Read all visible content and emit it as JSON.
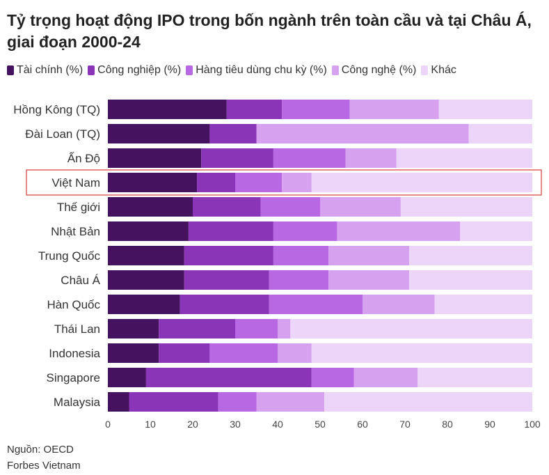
{
  "title": "Tỷ trọng hoạt động IPO trong bốn ngành trên toàn cầu và tại Châu Á, giai đoạn 2000-24",
  "source": "Nguồn: OECD",
  "publisher": "Forbes Vietnam",
  "colors": {
    "series": [
      "#44125e",
      "#8a35b8",
      "#b968e3",
      "#d6a2f0",
      "#ecd5f8"
    ],
    "highlight_border": "#d83a3a",
    "axis_text": "#444444"
  },
  "chart_data": {
    "type": "bar",
    "orientation": "horizontal",
    "stacked": true,
    "title": "Tỷ trọng hoạt động IPO trong bốn ngành trên toàn cầu và tại Châu Á, giai đoạn 2000-24",
    "categories": [
      "Hồng Kông (TQ)",
      "Đài Loan (TQ)",
      "Ấn Độ",
      "Việt Nam",
      "Thế giới",
      "Nhật Bản",
      "Trung Quốc",
      "Châu Á",
      "Hàn Quốc",
      "Thái Lan",
      "Indonesia",
      "Singapore",
      "Malaysia"
    ],
    "series": [
      {
        "name": "Tài chính (%)",
        "values": [
          28,
          24,
          22,
          21,
          20,
          19,
          18,
          18,
          17,
          12,
          12,
          9,
          5
        ]
      },
      {
        "name": "Công nghiệp (%)",
        "values": [
          13,
          11,
          17,
          9,
          16,
          20,
          21,
          20,
          21,
          18,
          12,
          39,
          21
        ]
      },
      {
        "name": "Hàng tiêu dùng chu kỳ (%)",
        "values": [
          16,
          0,
          17,
          11,
          14,
          15,
          13,
          14,
          22,
          10,
          16,
          10,
          9
        ]
      },
      {
        "name": "Công nghệ (%)",
        "values": [
          21,
          50,
          12,
          7,
          19,
          29,
          19,
          19,
          17,
          3,
          8,
          15,
          16
        ]
      },
      {
        "name": "Khác",
        "values": [
          22,
          15,
          32,
          52,
          31,
          17,
          29,
          29,
          23,
          57,
          52,
          27,
          49
        ]
      }
    ],
    "highlight": "Việt Nam",
    "xlim": [
      0,
      100
    ],
    "xticks": [
      0,
      10,
      20,
      30,
      40,
      50,
      60,
      70,
      80,
      90,
      100
    ],
    "grid": false,
    "legend": "top-left"
  }
}
